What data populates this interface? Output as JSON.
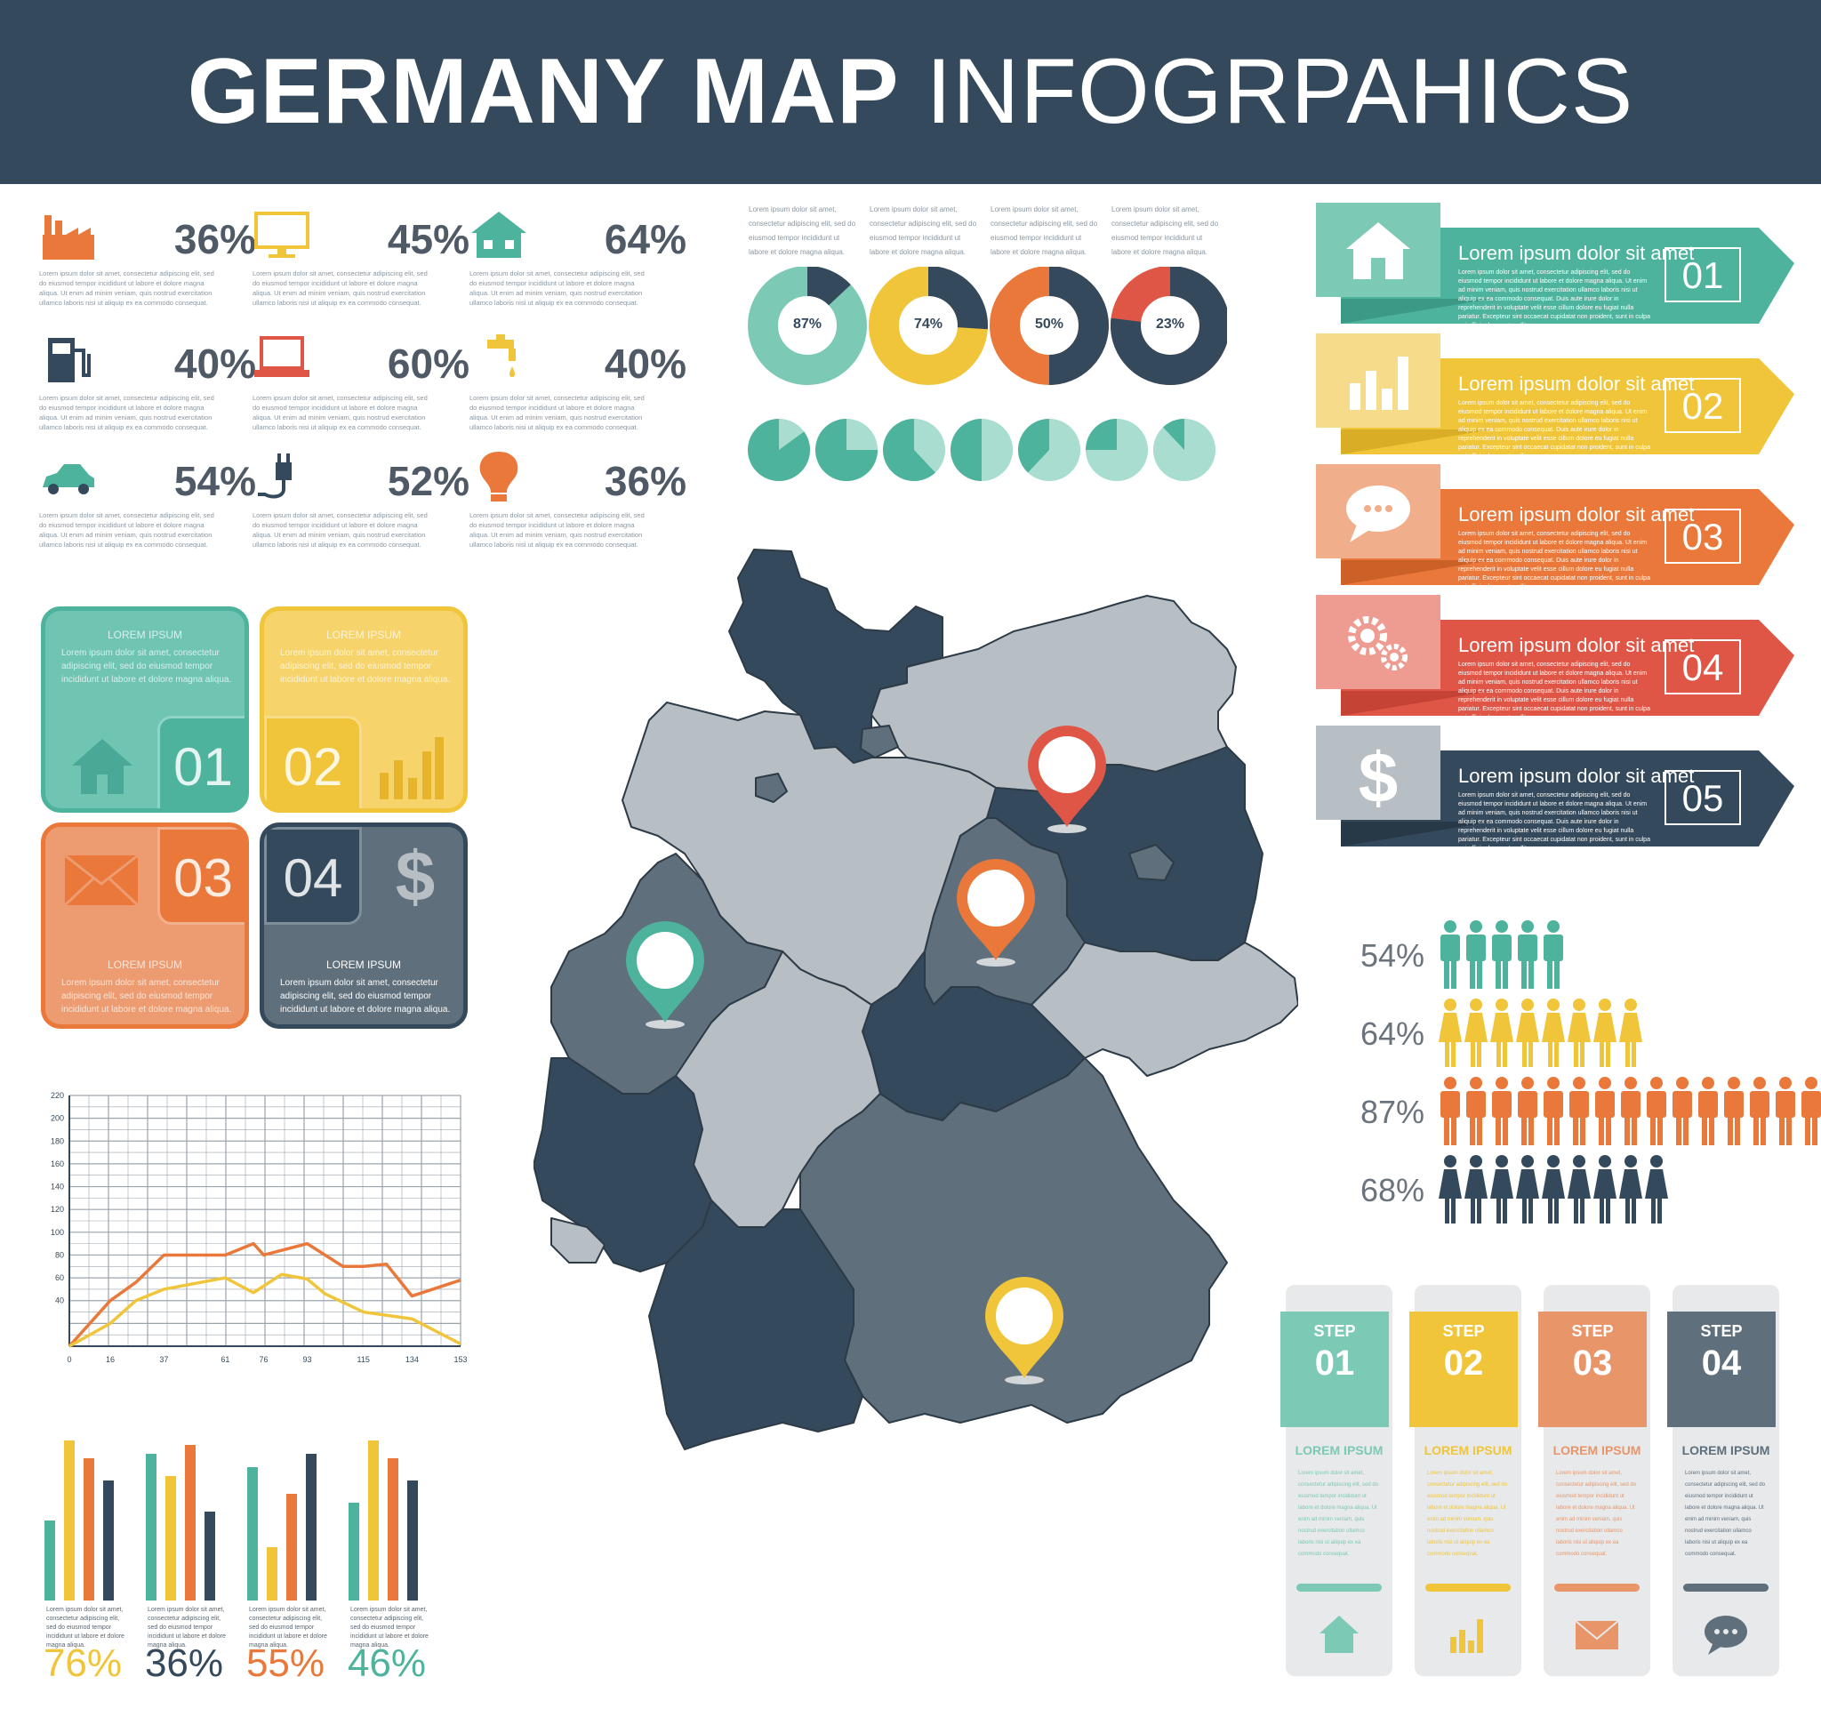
{
  "header": {
    "title_bold": "GERMANY MAP",
    "title_light": "INFOGRPAHICS"
  },
  "colors": {
    "navy": "#344a5c",
    "teal": "#4db39c",
    "yellow": "#f0c53a",
    "orange": "#e9783a",
    "red": "#e05646",
    "gray": "#5f6f7b",
    "lightgray": "#b7bec4"
  },
  "lorem_small": "Lorem ipsum dolor sit amet, consectetur adipiscing elit, sed do eiusmod tempor incididunt ut labore et dolore magna aliqua. Ut enim ad minim veniam, quis nostrud exercitation ullamco laboris nisi ut aliquip ex ea commodo consequat.",
  "lorem_mid": "Lorem ipsum dolor sit amet, consectetur adipiscing elit, sed do eiusmod tempor incididunt ut labore et dolore magna aliqua.",
  "stats": [
    {
      "icon": "factory-icon",
      "value": "36%"
    },
    {
      "icon": "monitor-icon",
      "value": "45%"
    },
    {
      "icon": "house-icon",
      "value": "64%"
    },
    {
      "icon": "fuel-pump-icon",
      "value": "40%"
    },
    {
      "icon": "laptop-icon",
      "value": "60%"
    },
    {
      "icon": "water-tap-icon",
      "value": "40%"
    },
    {
      "icon": "car-icon",
      "value": "54%"
    },
    {
      "icon": "power-plug-icon",
      "value": "52%"
    },
    {
      "icon": "light-bulb-icon",
      "value": "36%"
    }
  ],
  "tiles": [
    {
      "title": "LOREM IPSUM",
      "num": "01",
      "body": "Lorem ipsum dolor sit amet, consectetur adipiscing elit, sed do eiusmod tempor incididunt ut labore et dolore magna aliqua."
    },
    {
      "title": "LOREM IPSUM",
      "num": "02",
      "body": "Lorem ipsum dolor sit amet, consectetur adipiscing elit, sed do eiusmod tempor incididunt ut labore et dolore magna aliqua."
    },
    {
      "title": "LOREM IPSUM",
      "num": "03",
      "body": "Lorem ipsum dolor sit amet, consectetur adipiscing elit, sed do eiusmod tempor incididunt ut labore et dolore magna aliqua."
    },
    {
      "title": "LOREM IPSUM",
      "num": "04",
      "body": "Lorem ipsum dolor sit amet, consectetur adipiscing elit, sed do eiusmod tempor incididunt ut labore et dolore magna aliqua."
    }
  ],
  "donuts": [
    {
      "label": "87%",
      "value": 87,
      "ring": "#7cc9b6",
      "fill": "#344a5c"
    },
    {
      "label": "74%",
      "value": 74,
      "ring": "#f0c53a",
      "fill": "#344a5c"
    },
    {
      "label": "50%",
      "value": 50,
      "ring": "#e9783a",
      "fill": "#344a5c"
    },
    {
      "label": "23%",
      "value": 23,
      "ring": "#e05646",
      "fill": "#344a5c"
    }
  ],
  "small_pies": [
    85,
    75,
    62,
    50,
    38,
    25,
    12
  ],
  "banners": [
    {
      "icon": "house-icon",
      "title": "Lorem ipsum dolor sit amet",
      "num": "01"
    },
    {
      "icon": "bar-chart-icon",
      "title": "Lorem ipsum dolor sit amet",
      "num": "02"
    },
    {
      "icon": "speech-bubble-icon",
      "title": "Lorem ipsum dolor sit amet",
      "num": "03"
    },
    {
      "icon": "gears-icon",
      "title": "Lorem ipsum dolor sit amet",
      "num": "04"
    },
    {
      "icon": "dollar-icon",
      "title": "Lorem ipsum dolor sit amet",
      "num": "05"
    }
  ],
  "banner_body": "Lorem ipsum dolor sit amet, consectetur adipiscing elit, sed do eiusmod tempor incididunt ut labore et dolore magna aliqua. Ut enim ad minim veniam, quis nostrud exercitation ullamco laboris nisi ut aliquip ex ea commodo consequat. Duis aute irure dolor in reprehenderit in voluptate velit esse cillum dolore eu fugiat nulla pariatur. Excepteur sint occaecat cupidatat non proident, sunt in culpa qui officia deserunt mollit.",
  "people": [
    {
      "pct": "54%",
      "count": 5,
      "type": "male",
      "color": "#4db39c"
    },
    {
      "pct": "64%",
      "count": 8,
      "type": "female",
      "color": "#f0c53a"
    },
    {
      "pct": "87%",
      "count": 16,
      "type": "male",
      "color": "#e9783a"
    },
    {
      "pct": "68%",
      "count": 9,
      "type": "female",
      "color": "#344a5c"
    }
  ],
  "chart_data": [
    {
      "type": "line",
      "x": [
        0,
        16,
        37,
        61,
        76,
        93,
        115,
        134,
        153
      ],
      "ylim": [
        0,
        220
      ],
      "y_ticks": [
        40,
        60,
        80,
        100,
        120,
        140,
        160,
        180,
        200,
        220
      ],
      "x_ticks": [
        "0",
        "16",
        "37",
        "61",
        "76",
        "93",
        "115",
        "134",
        "153"
      ],
      "grid": true,
      "series": [
        {
          "name": "orange",
          "color": "#e9783a",
          "points": [
            [
              0,
              0
            ],
            [
              16,
              40
            ],
            [
              26,
              56
            ],
            [
              37,
              80
            ],
            [
              61,
              80
            ],
            [
              72,
              90
            ],
            [
              76,
              80
            ],
            [
              93,
              90
            ],
            [
              107,
              70
            ],
            [
              115,
              70
            ],
            [
              124,
              72
            ],
            [
              134,
              44
            ],
            [
              153,
              58
            ]
          ]
        },
        {
          "name": "yellow",
          "color": "#f0c53a",
          "points": [
            [
              0,
              0
            ],
            [
              16,
              20
            ],
            [
              26,
              40
            ],
            [
              37,
              50
            ],
            [
              61,
              60
            ],
            [
              72,
              47
            ],
            [
              83,
              63
            ],
            [
              93,
              59
            ],
            [
              100,
              46
            ],
            [
              115,
              30
            ],
            [
              134,
              24
            ],
            [
              153,
              2
            ]
          ]
        }
      ]
    },
    {
      "type": "bar",
      "groups": [
        {
          "pct": "76%",
          "pct_color": "#f0c53a",
          "values": [
            90,
            180,
            160,
            135
          ]
        },
        {
          "pct": "36%",
          "pct_color": "#344a5c",
          "values": [
            165,
            140,
            175,
            100
          ]
        },
        {
          "pct": "55%",
          "pct_color": "#e9783a",
          "values": [
            150,
            60,
            120,
            165
          ]
        },
        {
          "pct": "46%",
          "pct_color": "#4db39c",
          "values": [
            110,
            180,
            160,
            135
          ]
        }
      ],
      "series_colors": [
        "#4db39c",
        "#f0c53a",
        "#e9783a",
        "#344a5c"
      ]
    }
  ],
  "bars_text": "Lorem ipsum dolor sit amet, consectetur adipiscing elit, sed do eiusmod tempor incididunt ut labore et dolore magna aliqua.",
  "steps": [
    {
      "label": "STEP",
      "num": "01",
      "head": "LOREM IPSUM",
      "color": "#7cc9b6",
      "icon": "house-icon"
    },
    {
      "label": "STEP",
      "num": "02",
      "head": "LOREM IPSUM",
      "color": "#f0c53a",
      "icon": "bar-chart-icon"
    },
    {
      "label": "STEP",
      "num": "03",
      "head": "LOREM IPSUM",
      "color": "#e9956a",
      "icon": "envelope-icon"
    },
    {
      "label": "STEP",
      "num": "04",
      "head": "LOREM IPSUM",
      "color": "#5f6f7b",
      "icon": "speech-bubble-icon"
    }
  ],
  "map": {
    "pins": [
      {
        "name": "pin-north",
        "color": "#e05646"
      },
      {
        "name": "pin-center",
        "color": "#e9783a"
      },
      {
        "name": "pin-west",
        "color": "#4db39c"
      },
      {
        "name": "pin-south",
        "color": "#f0c53a"
      }
    ]
  }
}
